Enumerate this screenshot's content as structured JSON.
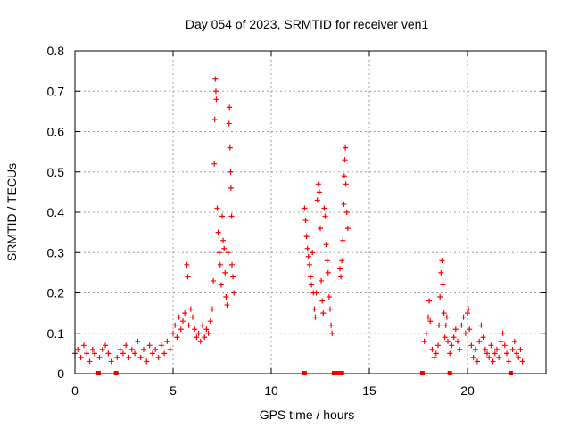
{
  "chart_data": {
    "type": "scatter",
    "title": "Day 054 of 2023, SRMTID for receiver ven1",
    "xlabel": "GPS time / hours",
    "ylabel": "SRMTID / TECUs",
    "xlim": [
      0,
      24
    ],
    "ylim": [
      0,
      0.8
    ],
    "x_ticks": [
      0,
      5,
      10,
      15,
      20
    ],
    "x_tick_labels": [
      "0",
      "5",
      "10",
      "15",
      "20"
    ],
    "y_ticks": [
      0,
      0.1,
      0.2,
      0.3,
      0.4,
      0.5,
      0.6,
      0.7,
      0.8
    ],
    "y_tick_labels": [
      "0",
      "0.1",
      "0.2",
      "0.3",
      "0.4",
      "0.5",
      "0.6",
      "0.7",
      "0.8"
    ],
    "grid": true,
    "marker": "+",
    "series_color": "#ff0000",
    "series": [
      {
        "name": "SRMTID",
        "points": [
          [
            0.0,
            0.05
          ],
          [
            0.15,
            0.06
          ],
          [
            0.3,
            0.04
          ],
          [
            0.45,
            0.07
          ],
          [
            0.6,
            0.05
          ],
          [
            0.75,
            0.03
          ],
          [
            0.9,
            0.06
          ],
          [
            1.0,
            0.05
          ],
          [
            1.25,
            0.04
          ],
          [
            1.4,
            0.06
          ],
          [
            1.55,
            0.07
          ],
          [
            1.7,
            0.05
          ],
          [
            1.85,
            0.03
          ],
          [
            2.15,
            0.04
          ],
          [
            2.3,
            0.06
          ],
          [
            2.45,
            0.05
          ],
          [
            2.6,
            0.07
          ],
          [
            2.75,
            0.04
          ],
          [
            2.9,
            0.06
          ],
          [
            3.05,
            0.05
          ],
          [
            3.2,
            0.08
          ],
          [
            3.35,
            0.04
          ],
          [
            3.5,
            0.06
          ],
          [
            3.65,
            0.03
          ],
          [
            3.8,
            0.07
          ],
          [
            3.95,
            0.05
          ],
          [
            4.1,
            0.06
          ],
          [
            4.25,
            0.04
          ],
          [
            4.4,
            0.07
          ],
          [
            4.55,
            0.05
          ],
          [
            4.7,
            0.08
          ],
          [
            4.85,
            0.06
          ],
          [
            5.0,
            0.1
          ],
          [
            5.1,
            0.12
          ],
          [
            5.2,
            0.09
          ],
          [
            5.3,
            0.14
          ],
          [
            5.4,
            0.11
          ],
          [
            5.5,
            0.13
          ],
          [
            5.6,
            0.15
          ],
          [
            5.7,
            0.27
          ],
          [
            5.75,
            0.24
          ],
          [
            5.8,
            0.12
          ],
          [
            5.9,
            0.16
          ],
          [
            6.0,
            0.14
          ],
          [
            6.1,
            0.11
          ],
          [
            6.2,
            0.09
          ],
          [
            6.3,
            0.1
          ],
          [
            6.4,
            0.08
          ],
          [
            6.5,
            0.12
          ],
          [
            6.6,
            0.09
          ],
          [
            6.7,
            0.11
          ],
          [
            6.8,
            0.1
          ],
          [
            6.9,
            0.13
          ],
          [
            7.0,
            0.16
          ],
          [
            7.05,
            0.23
          ],
          [
            7.1,
            0.52
          ],
          [
            7.12,
            0.63
          ],
          [
            7.15,
            0.73
          ],
          [
            7.18,
            0.7
          ],
          [
            7.2,
            0.68
          ],
          [
            7.25,
            0.41
          ],
          [
            7.3,
            0.35
          ],
          [
            7.35,
            0.3
          ],
          [
            7.4,
            0.27
          ],
          [
            7.45,
            0.22
          ],
          [
            7.5,
            0.39
          ],
          [
            7.55,
            0.33
          ],
          [
            7.6,
            0.31
          ],
          [
            7.65,
            0.25
          ],
          [
            7.7,
            0.19
          ],
          [
            7.75,
            0.17
          ],
          [
            7.8,
            0.3
          ],
          [
            7.85,
            0.62
          ],
          [
            7.87,
            0.66
          ],
          [
            7.9,
            0.56
          ],
          [
            7.93,
            0.5
          ],
          [
            7.95,
            0.46
          ],
          [
            7.98,
            0.39
          ],
          [
            8.0,
            0.27
          ],
          [
            8.05,
            0.24
          ],
          [
            8.1,
            0.2
          ],
          [
            11.7,
            0.41
          ],
          [
            11.75,
            0.38
          ],
          [
            11.8,
            0.34
          ],
          [
            11.85,
            0.31
          ],
          [
            11.9,
            0.29
          ],
          [
            11.95,
            0.27
          ],
          [
            12.0,
            0.24
          ],
          [
            12.05,
            0.22
          ],
          [
            12.1,
            0.3
          ],
          [
            12.15,
            0.2
          ],
          [
            12.2,
            0.16
          ],
          [
            12.25,
            0.14
          ],
          [
            12.3,
            0.2
          ],
          [
            12.35,
            0.43
          ],
          [
            12.4,
            0.47
          ],
          [
            12.45,
            0.45
          ],
          [
            12.5,
            0.36
          ],
          [
            12.55,
            0.23
          ],
          [
            12.6,
            0.18
          ],
          [
            12.65,
            0.15
          ],
          [
            12.7,
            0.41
          ],
          [
            12.75,
            0.39
          ],
          [
            12.8,
            0.32
          ],
          [
            12.85,
            0.28
          ],
          [
            12.9,
            0.25
          ],
          [
            12.95,
            0.19
          ],
          [
            13.0,
            0.16
          ],
          [
            13.05,
            0.12
          ],
          [
            13.1,
            0.1
          ],
          [
            13.5,
            0.26
          ],
          [
            13.55,
            0.24
          ],
          [
            13.6,
            0.28
          ],
          [
            13.65,
            0.33
          ],
          [
            13.7,
            0.42
          ],
          [
            13.72,
            0.49
          ],
          [
            13.75,
            0.53
          ],
          [
            13.78,
            0.56
          ],
          [
            13.8,
            0.47
          ],
          [
            13.85,
            0.4
          ],
          [
            13.9,
            0.36
          ],
          [
            17.8,
            0.08
          ],
          [
            17.9,
            0.1
          ],
          [
            18.0,
            0.14
          ],
          [
            18.05,
            0.18
          ],
          [
            18.1,
            0.13
          ],
          [
            18.2,
            0.06
          ],
          [
            18.3,
            0.04
          ],
          [
            18.4,
            0.05
          ],
          [
            18.5,
            0.07
          ],
          [
            18.55,
            0.12
          ],
          [
            18.6,
            0.19
          ],
          [
            18.65,
            0.25
          ],
          [
            18.7,
            0.28
          ],
          [
            18.75,
            0.22
          ],
          [
            18.8,
            0.15
          ],
          [
            18.85,
            0.09
          ],
          [
            18.9,
            0.12
          ],
          [
            18.95,
            0.14
          ],
          [
            19.0,
            0.08
          ],
          [
            19.1,
            0.05
          ],
          [
            19.2,
            0.07
          ],
          [
            19.3,
            0.09
          ],
          [
            19.4,
            0.11
          ],
          [
            19.5,
            0.08
          ],
          [
            19.6,
            0.06
          ],
          [
            19.7,
            0.12
          ],
          [
            19.8,
            0.14
          ],
          [
            19.9,
            0.1
          ],
          [
            20.0,
            0.15
          ],
          [
            20.05,
            0.16
          ],
          [
            20.1,
            0.11
          ],
          [
            20.2,
            0.07
          ],
          [
            20.3,
            0.04
          ],
          [
            20.4,
            0.06
          ],
          [
            20.5,
            0.03
          ],
          [
            20.6,
            0.08
          ],
          [
            20.7,
            0.12
          ],
          [
            20.8,
            0.09
          ],
          [
            20.9,
            0.06
          ],
          [
            21.0,
            0.05
          ],
          [
            21.1,
            0.04
          ],
          [
            21.2,
            0.07
          ],
          [
            21.3,
            0.03
          ],
          [
            21.4,
            0.05
          ],
          [
            21.5,
            0.06
          ],
          [
            21.6,
            0.04
          ],
          [
            21.7,
            0.08
          ],
          [
            21.8,
            0.1
          ],
          [
            21.9,
            0.07
          ],
          [
            22.0,
            0.05
          ],
          [
            22.1,
            0.03
          ],
          [
            22.3,
            0.06
          ],
          [
            22.4,
            0.08
          ],
          [
            22.5,
            0.05
          ],
          [
            22.6,
            0.04
          ],
          [
            22.7,
            0.06
          ],
          [
            22.8,
            0.03
          ]
        ]
      }
    ],
    "gap_markers_x": [
      1.2,
      2.1,
      11.7,
      13.2,
      13.4,
      13.6,
      17.7,
      19.1,
      22.2
    ]
  }
}
